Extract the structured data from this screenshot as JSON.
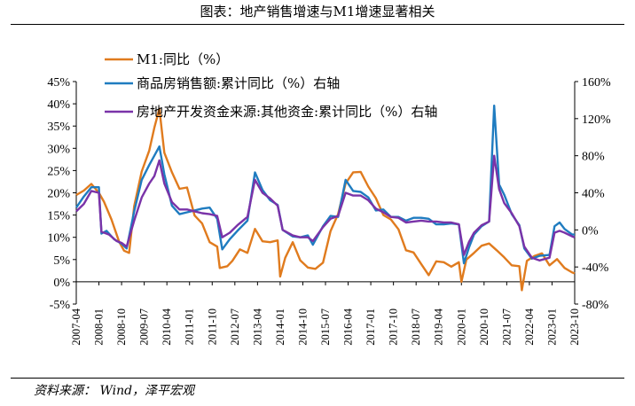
{
  "header": {
    "title": "图表：地产销售增速与M1增速显著相关"
  },
  "footer": {
    "source": "资料来源：  Wind，泽平宏观"
  },
  "colors": {
    "m1": "#E07B1E",
    "sales": "#1F7CC0",
    "funding": "#7A33A8"
  },
  "chart_data": {
    "type": "line",
    "title": "",
    "x_ticks": [
      "2007-04",
      "2008-01",
      "2008-10",
      "2009-07",
      "2010-04",
      "2011-01",
      "2011-10",
      "2012-07",
      "2013-04",
      "2014-01",
      "2014-10",
      "2015-07",
      "2016-04",
      "2017-01",
      "2017-10",
      "2018-07",
      "2019-04",
      "2020-01",
      "2020-10",
      "2021-07",
      "2022-04",
      "2023-01",
      "2023-10"
    ],
    "x_range": [
      "2007-04",
      "2023-10"
    ],
    "y_left": {
      "ticks": [
        "45%",
        "40%",
        "35%",
        "30%",
        "25%",
        "20%",
        "15%",
        "10%",
        "5%",
        "0%",
        "-5%"
      ],
      "range": [
        -5,
        45
      ]
    },
    "y_right": {
      "ticks": [
        "160%",
        "120%",
        "80%",
        "40%",
        "0%",
        "-40%",
        "-80%"
      ],
      "range": [
        -80,
        160
      ]
    },
    "legend_position": "top-left",
    "series": [
      {
        "name": "M1:同比（%）",
        "axis": "left",
        "points": [
          [
            "2007-04",
            19.5
          ],
          [
            "2007-07",
            20.5
          ],
          [
            "2007-10",
            22.0
          ],
          [
            "2008-01",
            20.0
          ],
          [
            "2008-03",
            18.0
          ],
          [
            "2008-06",
            14.0
          ],
          [
            "2008-09",
            9.0
          ],
          [
            "2008-11",
            7.0
          ],
          [
            "2009-01",
            6.5
          ],
          [
            "2009-03",
            17.0
          ],
          [
            "2009-06",
            24.8
          ],
          [
            "2009-09",
            29.5
          ],
          [
            "2009-11",
            34.6
          ],
          [
            "2010-01",
            38.9
          ],
          [
            "2010-03",
            29.0
          ],
          [
            "2010-06",
            24.6
          ],
          [
            "2010-09",
            20.9
          ],
          [
            "2010-12",
            21.2
          ],
          [
            "2011-03",
            14.9
          ],
          [
            "2011-06",
            13.1
          ],
          [
            "2011-09",
            8.9
          ],
          [
            "2011-12",
            7.9
          ],
          [
            "2012-01",
            3.1
          ],
          [
            "2012-04",
            3.5
          ],
          [
            "2012-06",
            4.7
          ],
          [
            "2012-09",
            7.3
          ],
          [
            "2012-12",
            6.5
          ],
          [
            "2013-03",
            11.9
          ],
          [
            "2013-06",
            9.1
          ],
          [
            "2013-09",
            8.9
          ],
          [
            "2013-12",
            9.3
          ],
          [
            "2014-01",
            1.2
          ],
          [
            "2014-03",
            5.4
          ],
          [
            "2014-06",
            8.9
          ],
          [
            "2014-09",
            4.8
          ],
          [
            "2014-12",
            3.2
          ],
          [
            "2015-03",
            2.9
          ],
          [
            "2015-06",
            4.3
          ],
          [
            "2015-09",
            11.4
          ],
          [
            "2015-12",
            15.2
          ],
          [
            "2016-03",
            22.1
          ],
          [
            "2016-06",
            24.6
          ],
          [
            "2016-09",
            24.7
          ],
          [
            "2016-12",
            21.4
          ],
          [
            "2017-03",
            18.8
          ],
          [
            "2017-06",
            15.0
          ],
          [
            "2017-09",
            14.0
          ],
          [
            "2017-12",
            11.8
          ],
          [
            "2018-03",
            7.1
          ],
          [
            "2018-06",
            6.6
          ],
          [
            "2018-09",
            4.0
          ],
          [
            "2018-12",
            1.5
          ],
          [
            "2019-03",
            4.6
          ],
          [
            "2019-06",
            4.4
          ],
          [
            "2019-09",
            3.4
          ],
          [
            "2019-12",
            4.4
          ],
          [
            "2020-01",
            0.0
          ],
          [
            "2020-03",
            5.0
          ],
          [
            "2020-06",
            6.5
          ],
          [
            "2020-09",
            8.1
          ],
          [
            "2020-12",
            8.6
          ],
          [
            "2021-03",
            7.1
          ],
          [
            "2021-06",
            5.5
          ],
          [
            "2021-09",
            3.7
          ],
          [
            "2021-12",
            3.5
          ],
          [
            "2022-01",
            -1.9
          ],
          [
            "2022-03",
            4.7
          ],
          [
            "2022-06",
            5.8
          ],
          [
            "2022-09",
            6.4
          ],
          [
            "2022-12",
            3.7
          ],
          [
            "2023-03",
            5.1
          ],
          [
            "2023-06",
            3.1
          ],
          [
            "2023-09",
            2.1
          ],
          [
            "2023-10",
            1.9
          ]
        ]
      },
      {
        "name": "商品房销售额:累计同比（%）右轴",
        "axis": "right",
        "points": [
          [
            "2007-04",
            24
          ],
          [
            "2007-07",
            36
          ],
          [
            "2007-10",
            46
          ],
          [
            "2008-01",
            46
          ],
          [
            "2008-02",
            -4
          ],
          [
            "2008-04",
            -1
          ],
          [
            "2008-07",
            -10
          ],
          [
            "2008-10",
            -15
          ],
          [
            "2008-12",
            -20
          ],
          [
            "2009-03",
            20
          ],
          [
            "2009-06",
            54
          ],
          [
            "2009-09",
            70
          ],
          [
            "2009-11",
            80
          ],
          [
            "2010-01",
            90
          ],
          [
            "2010-03",
            60
          ],
          [
            "2010-06",
            26
          ],
          [
            "2010-09",
            17
          ],
          [
            "2010-12",
            19
          ],
          [
            "2011-03",
            21
          ],
          [
            "2011-06",
            23
          ],
          [
            "2011-09",
            24
          ],
          [
            "2011-12",
            12
          ],
          [
            "2012-02",
            -21
          ],
          [
            "2012-05",
            -10
          ],
          [
            "2012-08",
            -1
          ],
          [
            "2012-12",
            10
          ],
          [
            "2013-03",
            62
          ],
          [
            "2013-06",
            43
          ],
          [
            "2013-09",
            32
          ],
          [
            "2013-12",
            27
          ],
          [
            "2014-02",
            -0.1
          ],
          [
            "2014-06",
            -7
          ],
          [
            "2014-09",
            -8
          ],
          [
            "2014-12",
            -6
          ],
          [
            "2015-02",
            -16
          ],
          [
            "2015-06",
            4
          ],
          [
            "2015-09",
            15
          ],
          [
            "2015-12",
            14
          ],
          [
            "2016-03",
            54
          ],
          [
            "2016-06",
            42
          ],
          [
            "2016-09",
            41
          ],
          [
            "2016-12",
            35
          ],
          [
            "2017-03",
            21
          ],
          [
            "2017-06",
            22
          ],
          [
            "2017-09",
            14
          ],
          [
            "2017-12",
            14
          ],
          [
            "2018-03",
            10
          ],
          [
            "2018-06",
            13
          ],
          [
            "2018-09",
            13
          ],
          [
            "2018-12",
            12
          ],
          [
            "2019-03",
            6
          ],
          [
            "2019-06",
            6
          ],
          [
            "2019-09",
            7
          ],
          [
            "2019-12",
            6
          ],
          [
            "2020-02",
            -36
          ],
          [
            "2020-04",
            -19
          ],
          [
            "2020-06",
            -5
          ],
          [
            "2020-09",
            4
          ],
          [
            "2020-12",
            9
          ],
          [
            "2021-02",
            134
          ],
          [
            "2021-04",
            49
          ],
          [
            "2021-06",
            38
          ],
          [
            "2021-09",
            17
          ],
          [
            "2021-12",
            5
          ],
          [
            "2022-02",
            -20
          ],
          [
            "2022-05",
            -31
          ],
          [
            "2022-08",
            -28
          ],
          [
            "2022-12",
            -27
          ],
          [
            "2023-02",
            4
          ],
          [
            "2023-04",
            8
          ],
          [
            "2023-06",
            1
          ],
          [
            "2023-09",
            -5
          ],
          [
            "2023-10",
            -5
          ]
        ]
      },
      {
        "name": "房地产开发资金来源:其他资金:累计同比（%）右轴",
        "axis": "right",
        "points": [
          [
            "2007-04",
            20
          ],
          [
            "2007-07",
            28
          ],
          [
            "2007-10",
            42
          ],
          [
            "2008-01",
            40
          ],
          [
            "2008-02",
            -2
          ],
          [
            "2008-05",
            -5
          ],
          [
            "2008-08",
            -12
          ],
          [
            "2008-10",
            -14
          ],
          [
            "2008-12",
            -18
          ],
          [
            "2009-03",
            10
          ],
          [
            "2009-06",
            35
          ],
          [
            "2009-09",
            50
          ],
          [
            "2009-11",
            58
          ],
          [
            "2010-01",
            75
          ],
          [
            "2010-03",
            50
          ],
          [
            "2010-06",
            30
          ],
          [
            "2010-09",
            22
          ],
          [
            "2010-12",
            22
          ],
          [
            "2011-03",
            20
          ],
          [
            "2011-06",
            18
          ],
          [
            "2011-09",
            17
          ],
          [
            "2011-12",
            15
          ],
          [
            "2012-02",
            -8
          ],
          [
            "2012-05",
            -3
          ],
          [
            "2012-08",
            5
          ],
          [
            "2012-12",
            14
          ],
          [
            "2013-03",
            54
          ],
          [
            "2013-06",
            40
          ],
          [
            "2013-09",
            34
          ],
          [
            "2013-12",
            26
          ],
          [
            "2014-02",
            0
          ],
          [
            "2014-06",
            -6
          ],
          [
            "2014-09",
            -8
          ],
          [
            "2014-12",
            -8
          ],
          [
            "2015-02",
            -12
          ],
          [
            "2015-06",
            3
          ],
          [
            "2015-09",
            12
          ],
          [
            "2015-12",
            15
          ],
          [
            "2016-03",
            40
          ],
          [
            "2016-06",
            37
          ],
          [
            "2016-09",
            37
          ],
          [
            "2016-12",
            32
          ],
          [
            "2017-03",
            23
          ],
          [
            "2017-06",
            19
          ],
          [
            "2017-09",
            14
          ],
          [
            "2017-12",
            13
          ],
          [
            "2018-03",
            8
          ],
          [
            "2018-06",
            9
          ],
          [
            "2018-09",
            10
          ],
          [
            "2018-12",
            9
          ],
          [
            "2019-03",
            9
          ],
          [
            "2019-06",
            8
          ],
          [
            "2019-09",
            8
          ],
          [
            "2019-12",
            6
          ],
          [
            "2020-02",
            -27
          ],
          [
            "2020-04",
            -13
          ],
          [
            "2020-06",
            -3
          ],
          [
            "2020-09",
            5
          ],
          [
            "2020-12",
            9
          ],
          [
            "2021-02",
            80
          ],
          [
            "2021-04",
            44
          ],
          [
            "2021-06",
            29
          ],
          [
            "2021-09",
            18
          ],
          [
            "2021-12",
            4
          ],
          [
            "2022-02",
            -18
          ],
          [
            "2022-05",
            -30
          ],
          [
            "2022-08",
            -33
          ],
          [
            "2022-12",
            -30
          ],
          [
            "2023-02",
            -3
          ],
          [
            "2023-04",
            -1
          ],
          [
            "2023-06",
            -3
          ],
          [
            "2023-09",
            -7
          ],
          [
            "2023-10",
            -8
          ]
        ]
      }
    ]
  }
}
